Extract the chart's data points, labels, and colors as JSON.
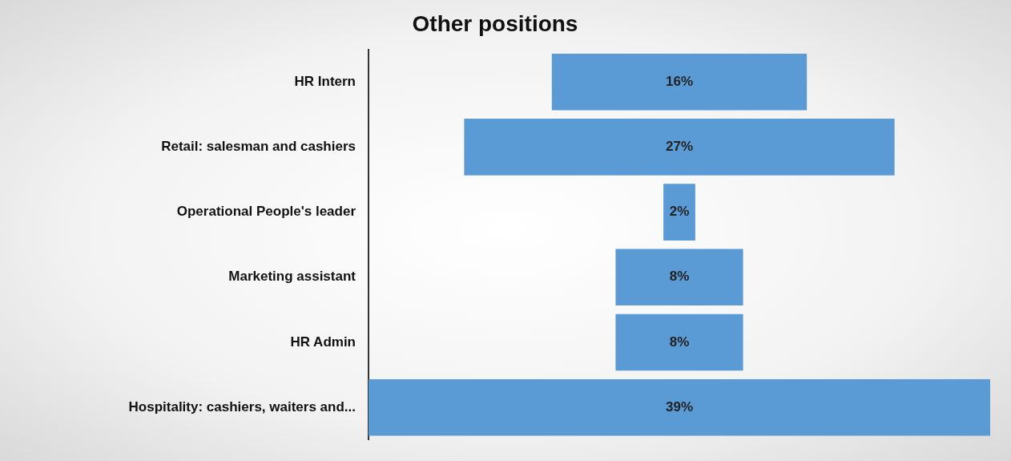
{
  "chart_data": {
    "type": "other",
    "title": "Other positions",
    "categories": [
      "HR Intern",
      "Retail: salesman and cashiers",
      "Operational People's leader",
      "Marketing assistant",
      "HR Admin",
      "Hospitality: cashiers, waiters and..."
    ],
    "values": [
      16,
      27,
      2,
      8,
      8,
      39
    ],
    "value_labels": [
      "16%",
      "27%",
      "2%",
      "8%",
      "8%",
      "39%"
    ],
    "color": "#5b9bd5",
    "legend": false
  }
}
